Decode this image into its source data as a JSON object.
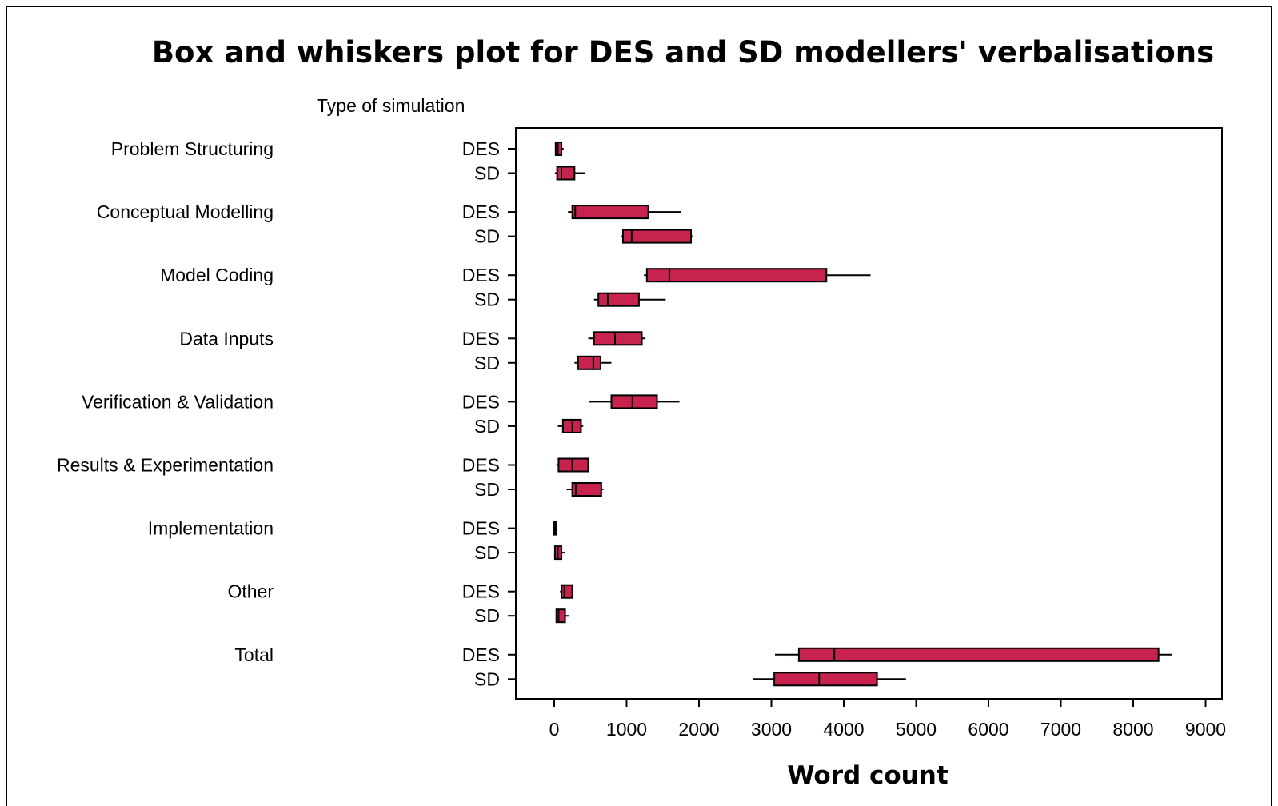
{
  "chart_data": {
    "type": "boxplot",
    "orientation": "horizontal",
    "title": "Box and whiskers plot for DES and SD modellers' verbalisations",
    "xlabel": "Word count",
    "group_header": "Type of simulation",
    "xlim": [
      -500,
      9100
    ],
    "xticks": [
      "0",
      "1000",
      "2000",
      "3000",
      "4000",
      "5000",
      "6000",
      "7000",
      "8000",
      "9000"
    ],
    "xtick_values": [
      0,
      1000,
      2000,
      3000,
      4000,
      5000,
      6000,
      7000,
      8000,
      9000
    ],
    "box_color": "#c8234e",
    "groups": [
      {
        "label": "Problem Structuring",
        "series": [
          {
            "name": "DES",
            "min": 20,
            "q1": 20,
            "median": 50,
            "q3": 100,
            "max": 130
          },
          {
            "name": "SD",
            "min": 10,
            "q1": 40,
            "median": 100,
            "q3": 280,
            "max": 430
          }
        ]
      },
      {
        "label": "Conceptual Modelling",
        "series": [
          {
            "name": "DES",
            "min": 190,
            "q1": 250,
            "median": 290,
            "q3": 1300,
            "max": 1750
          },
          {
            "name": "SD",
            "min": 930,
            "q1": 950,
            "median": 1070,
            "q3": 1890,
            "max": 1910
          }
        ]
      },
      {
        "label": "Model Coding",
        "series": [
          {
            "name": "DES",
            "min": 1240,
            "q1": 1280,
            "median": 1590,
            "q3": 3760,
            "max": 4370
          },
          {
            "name": "SD",
            "min": 550,
            "q1": 610,
            "median": 740,
            "q3": 1170,
            "max": 1540
          }
        ]
      },
      {
        "label": "Data Inputs",
        "series": [
          {
            "name": "DES",
            "min": 470,
            "q1": 550,
            "median": 840,
            "q3": 1210,
            "max": 1260
          },
          {
            "name": "SD",
            "min": 280,
            "q1": 330,
            "median": 540,
            "q3": 640,
            "max": 790
          }
        ]
      },
      {
        "label": "Verification & Validation",
        "series": [
          {
            "name": "DES",
            "min": 480,
            "q1": 790,
            "median": 1080,
            "q3": 1420,
            "max": 1730
          },
          {
            "name": "SD",
            "min": 50,
            "q1": 120,
            "median": 250,
            "q3": 370,
            "max": 400
          }
        ]
      },
      {
        "label": "Results & Experimentation",
        "series": [
          {
            "name": "DES",
            "min": 30,
            "q1": 60,
            "median": 250,
            "q3": 470,
            "max": 480
          },
          {
            "name": "SD",
            "min": 170,
            "q1": 250,
            "median": 300,
            "q3": 650,
            "max": 680
          }
        ]
      },
      {
        "label": "Implementation",
        "series": [
          {
            "name": "DES",
            "min": 0,
            "q1": 0,
            "median": 0,
            "q3": 10,
            "max": 20
          },
          {
            "name": "SD",
            "min": 0,
            "q1": 10,
            "median": 50,
            "q3": 100,
            "max": 150
          }
        ]
      },
      {
        "label": "Other",
        "series": [
          {
            "name": "DES",
            "min": 80,
            "q1": 100,
            "median": 140,
            "q3": 250,
            "max": 260
          },
          {
            "name": "SD",
            "min": 20,
            "q1": 30,
            "median": 60,
            "q3": 150,
            "max": 200
          }
        ]
      },
      {
        "label": "Total",
        "series": [
          {
            "name": "DES",
            "min": 3050,
            "q1": 3380,
            "median": 3870,
            "q3": 8350,
            "max": 8530
          },
          {
            "name": "SD",
            "min": 2740,
            "q1": 3040,
            "median": 3660,
            "q3": 4460,
            "max": 4860
          }
        ]
      }
    ]
  }
}
